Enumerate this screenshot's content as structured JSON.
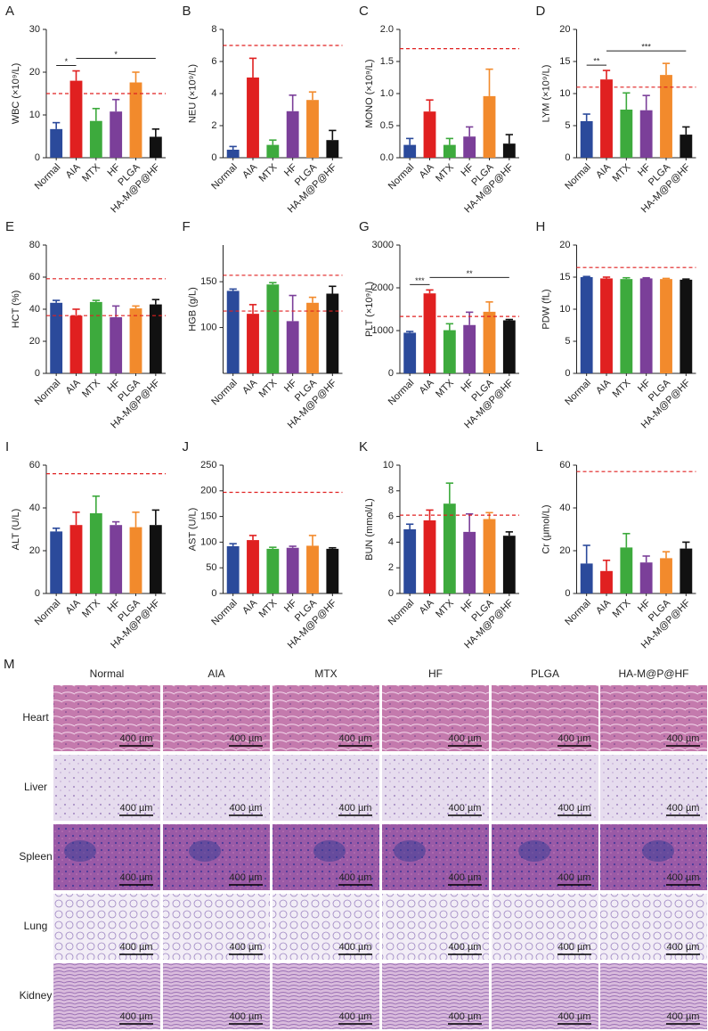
{
  "chart_data": [
    {
      "type": "bar",
      "label": "A",
      "ylabel": "WBC (×10⁹/L)",
      "categories": [
        "Normal",
        "AIA",
        "MTX",
        "HF",
        "PLGA",
        "HA-M@P@HF"
      ],
      "values": [
        6.7,
        18,
        8.6,
        10.8,
        17.6,
        4.9
      ],
      "errors": [
        1.5,
        2.3,
        2.9,
        2.8,
        2.4,
        1.8
      ],
      "colors": [
        "#2b4a9b",
        "#e02020",
        "#3daa3d",
        "#7b3f99",
        "#f28a2c",
        "#111111"
      ],
      "ylim": [
        0,
        30
      ],
      "yticks": [
        0,
        10,
        20,
        30
      ],
      "ref_lines": [
        15
      ],
      "ref_color": "#e02020",
      "significance": [
        {
          "label": "*",
          "between": [
            "Normal",
            "AIA"
          ]
        },
        {
          "label": "*",
          "between": [
            "AIA",
            "HA-M@P@HF"
          ]
        }
      ]
    },
    {
      "type": "bar",
      "label": "B",
      "ylabel": "NEU (×10⁹/L)",
      "categories": [
        "Normal",
        "AIA",
        "MTX",
        "HF",
        "PLGA",
        "HA-M@P@HF"
      ],
      "values": [
        0.5,
        5,
        0.8,
        2.9,
        3.6,
        1.1
      ],
      "errors": [
        0.2,
        1.2,
        0.3,
        1,
        0.5,
        0.6
      ],
      "colors": [
        "#2b4a9b",
        "#e02020",
        "#3daa3d",
        "#7b3f99",
        "#f28a2c",
        "#111111"
      ],
      "ylim": [
        0,
        8
      ],
      "yticks": [
        0,
        2,
        4,
        6,
        8
      ],
      "ref_lines": [
        7
      ],
      "ref_color": "#e02020",
      "significance": []
    },
    {
      "type": "bar",
      "label": "C",
      "ylabel": "MONO (×10⁹/L)",
      "categories": [
        "Normal",
        "AIA",
        "MTX",
        "HF",
        "PLGA",
        "HA-M@P@HF"
      ],
      "values": [
        0.2,
        0.72,
        0.2,
        0.33,
        0.96,
        0.22
      ],
      "errors": [
        0.1,
        0.18,
        0.1,
        0.15,
        0.42,
        0.14
      ],
      "colors": [
        "#2b4a9b",
        "#e02020",
        "#3daa3d",
        "#7b3f99",
        "#f28a2c",
        "#111111"
      ],
      "ylim": [
        0,
        2
      ],
      "yticks": [
        {
          "value": 0,
          "label": "0.0"
        },
        0.5,
        {
          "value": 1,
          "label": "1.0"
        },
        1.5,
        {
          "value": 2,
          "label": "2.0"
        }
      ],
      "ref_lines": [
        1.7
      ],
      "ref_color": "#e02020",
      "significance": []
    },
    {
      "type": "bar",
      "label": "D",
      "ylabel": "LYM (×10⁹/L)",
      "categories": [
        "Normal",
        "AIA",
        "MTX",
        "HF",
        "PLGA",
        "HA-M@P@HF"
      ],
      "values": [
        5.7,
        12.2,
        7.5,
        7.4,
        12.9,
        3.6
      ],
      "errors": [
        1.1,
        1.4,
        2.6,
        2.3,
        1.8,
        1.2
      ],
      "colors": [
        "#2b4a9b",
        "#e02020",
        "#3daa3d",
        "#7b3f99",
        "#f28a2c",
        "#111111"
      ],
      "ylim": [
        0,
        20
      ],
      "yticks": [
        0,
        5,
        10,
        15,
        20
      ],
      "ref_lines": [
        11
      ],
      "ref_color": "#e02020",
      "significance": [
        {
          "label": "**",
          "between": [
            "Normal",
            "AIA"
          ]
        },
        {
          "label": "***",
          "between": [
            "AIA",
            "HA-M@P@HF"
          ]
        }
      ]
    },
    {
      "type": "bar",
      "label": "E",
      "ylabel": "HCT (%)",
      "categories": [
        "Normal",
        "AIA",
        "MTX",
        "HF",
        "PLGA",
        "HA-M@P@HF"
      ],
      "values": [
        44,
        36,
        44.5,
        35,
        40.5,
        43
      ],
      "errors": [
        1.5,
        4,
        1,
        7,
        1.5,
        3
      ],
      "colors": [
        "#2b4a9b",
        "#e02020",
        "#3daa3d",
        "#7b3f99",
        "#f28a2c",
        "#111111"
      ],
      "ylim": [
        0,
        80
      ],
      "yticks": [
        0,
        20,
        40,
        60,
        80
      ],
      "ref_lines": [
        59,
        36
      ],
      "ref_color": "#e02020",
      "significance": []
    },
    {
      "type": "bar",
      "label": "F",
      "ylabel": "HGB (g/L)",
      "categories": [
        "Normal",
        "AIA",
        "MTX",
        "HF",
        "PLGA",
        "HA-M@P@HF"
      ],
      "values": [
        140,
        115,
        147,
        107,
        127,
        137
      ],
      "errors": [
        2,
        10,
        2,
        28,
        6,
        8
      ],
      "colors": [
        "#2b4a9b",
        "#e02020",
        "#3daa3d",
        "#7b3f99",
        "#f28a2c",
        "#111111"
      ],
      "ylim": [
        50,
        190
      ],
      "yticks": [
        100,
        150
      ],
      "ref_lines": [
        157,
        118
      ],
      "ref_color": "#e02020",
      "significance": []
    },
    {
      "type": "bar",
      "label": "G",
      "ylabel": "PLT (×10⁹/L)",
      "categories": [
        "Normal",
        "AIA",
        "MTX",
        "HF",
        "PLGA",
        "HA-M@P@HF"
      ],
      "values": [
        950,
        1870,
        1010,
        1130,
        1440,
        1240
      ],
      "errors": [
        30,
        80,
        150,
        300,
        230,
        20
      ],
      "colors": [
        "#2b4a9b",
        "#e02020",
        "#3daa3d",
        "#7b3f99",
        "#f28a2c",
        "#111111"
      ],
      "ylim": [
        0,
        3000
      ],
      "yticks": [
        0,
        1000,
        2000,
        3000
      ],
      "ref_lines": [
        1330
      ],
      "ref_color": "#e02020",
      "significance": [
        {
          "label": "***",
          "between": [
            "Normal",
            "AIA"
          ]
        },
        {
          "label": "**",
          "between": [
            "AIA",
            "HA-M@P@HF"
          ]
        }
      ]
    },
    {
      "type": "bar",
      "label": "H",
      "ylabel": "PDW (fL)",
      "categories": [
        "Normal",
        "AIA",
        "MTX",
        "HF",
        "PLGA",
        "HA-M@P@HF"
      ],
      "values": [
        15,
        14.8,
        14.7,
        14.8,
        14.7,
        14.6
      ],
      "errors": [
        0.1,
        0.2,
        0.2,
        0.1,
        0.1,
        0.1
      ],
      "colors": [
        "#2b4a9b",
        "#e02020",
        "#3daa3d",
        "#7b3f99",
        "#f28a2c",
        "#111111"
      ],
      "ylim": [
        0,
        20
      ],
      "yticks": [
        0,
        5,
        10,
        15,
        20
      ],
      "ref_lines": [
        16.5
      ],
      "ref_color": "#e02020",
      "significance": []
    },
    {
      "type": "bar",
      "label": "I",
      "ylabel": "ALT (U/L)",
      "categories": [
        "Normal",
        "AIA",
        "MTX",
        "HF",
        "PLGA",
        "HA-M@P@HF"
      ],
      "values": [
        29,
        32,
        37.5,
        32,
        31,
        32
      ],
      "errors": [
        1.5,
        6,
        8,
        1.5,
        7,
        7
      ],
      "colors": [
        "#2b4a9b",
        "#e02020",
        "#3daa3d",
        "#7b3f99",
        "#f28a2c",
        "#111111"
      ],
      "ylim": [
        0,
        60
      ],
      "yticks": [
        0,
        20,
        40,
        60
      ],
      "ref_lines": [
        56
      ],
      "ref_color": "#e02020",
      "significance": []
    },
    {
      "type": "bar",
      "label": "J",
      "ylabel": "AST (U/L)",
      "categories": [
        "Normal",
        "AIA",
        "MTX",
        "HF",
        "PLGA",
        "HA-M@P@HF"
      ],
      "values": [
        92,
        104,
        87,
        89,
        93,
        87
      ],
      "errors": [
        5,
        9,
        3,
        3,
        20,
        2
      ],
      "colors": [
        "#2b4a9b",
        "#e02020",
        "#3daa3d",
        "#7b3f99",
        "#f28a2c",
        "#111111"
      ],
      "ylim": [
        0,
        250
      ],
      "yticks": [
        0,
        50,
        100,
        150,
        200,
        250
      ],
      "ref_lines": [
        197
      ],
      "ref_color": "#e02020",
      "significance": []
    },
    {
      "type": "bar",
      "label": "K",
      "ylabel": "BUN (mmol/L)",
      "categories": [
        "Normal",
        "AIA",
        "MTX",
        "HF",
        "PLGA",
        "HA-M@P@HF"
      ],
      "values": [
        5,
        5.7,
        7,
        4.8,
        5.8,
        4.5
      ],
      "errors": [
        0.4,
        0.8,
        1.6,
        1.4,
        0.5,
        0.3
      ],
      "colors": [
        "#2b4a9b",
        "#e02020",
        "#3daa3d",
        "#7b3f99",
        "#f28a2c",
        "#111111"
      ],
      "ylim": [
        0,
        10
      ],
      "yticks": [
        0,
        2,
        4,
        6,
        8,
        10
      ],
      "ref_lines": [
        6.1
      ],
      "ref_color": "#e02020",
      "significance": []
    },
    {
      "type": "bar",
      "label": "L",
      "ylabel": "Cr (μmol/L)",
      "categories": [
        "Normal",
        "AIA",
        "MTX",
        "HF",
        "PLGA",
        "HA-M@P@HF"
      ],
      "values": [
        14,
        10.5,
        21.5,
        14.5,
        16.5,
        21
      ],
      "errors": [
        8.5,
        5,
        6.5,
        3,
        3,
        3
      ],
      "colors": [
        "#2b4a9b",
        "#e02020",
        "#3daa3d",
        "#7b3f99",
        "#f28a2c",
        "#111111"
      ],
      "ylim": [
        0,
        60
      ],
      "yticks": [
        0,
        20,
        40,
        60
      ],
      "ref_lines": [
        57
      ],
      "ref_color": "#e02020",
      "significance": []
    }
  ],
  "histology": {
    "label": "M",
    "columns": [
      "Normal",
      "AIA",
      "MTX",
      "HF",
      "PLGA",
      "HA-M@P@HF"
    ],
    "rows": [
      "Heart",
      "Liver",
      "Spleen",
      "Lung",
      "Kidney"
    ],
    "scale_bar": "400 µm"
  }
}
